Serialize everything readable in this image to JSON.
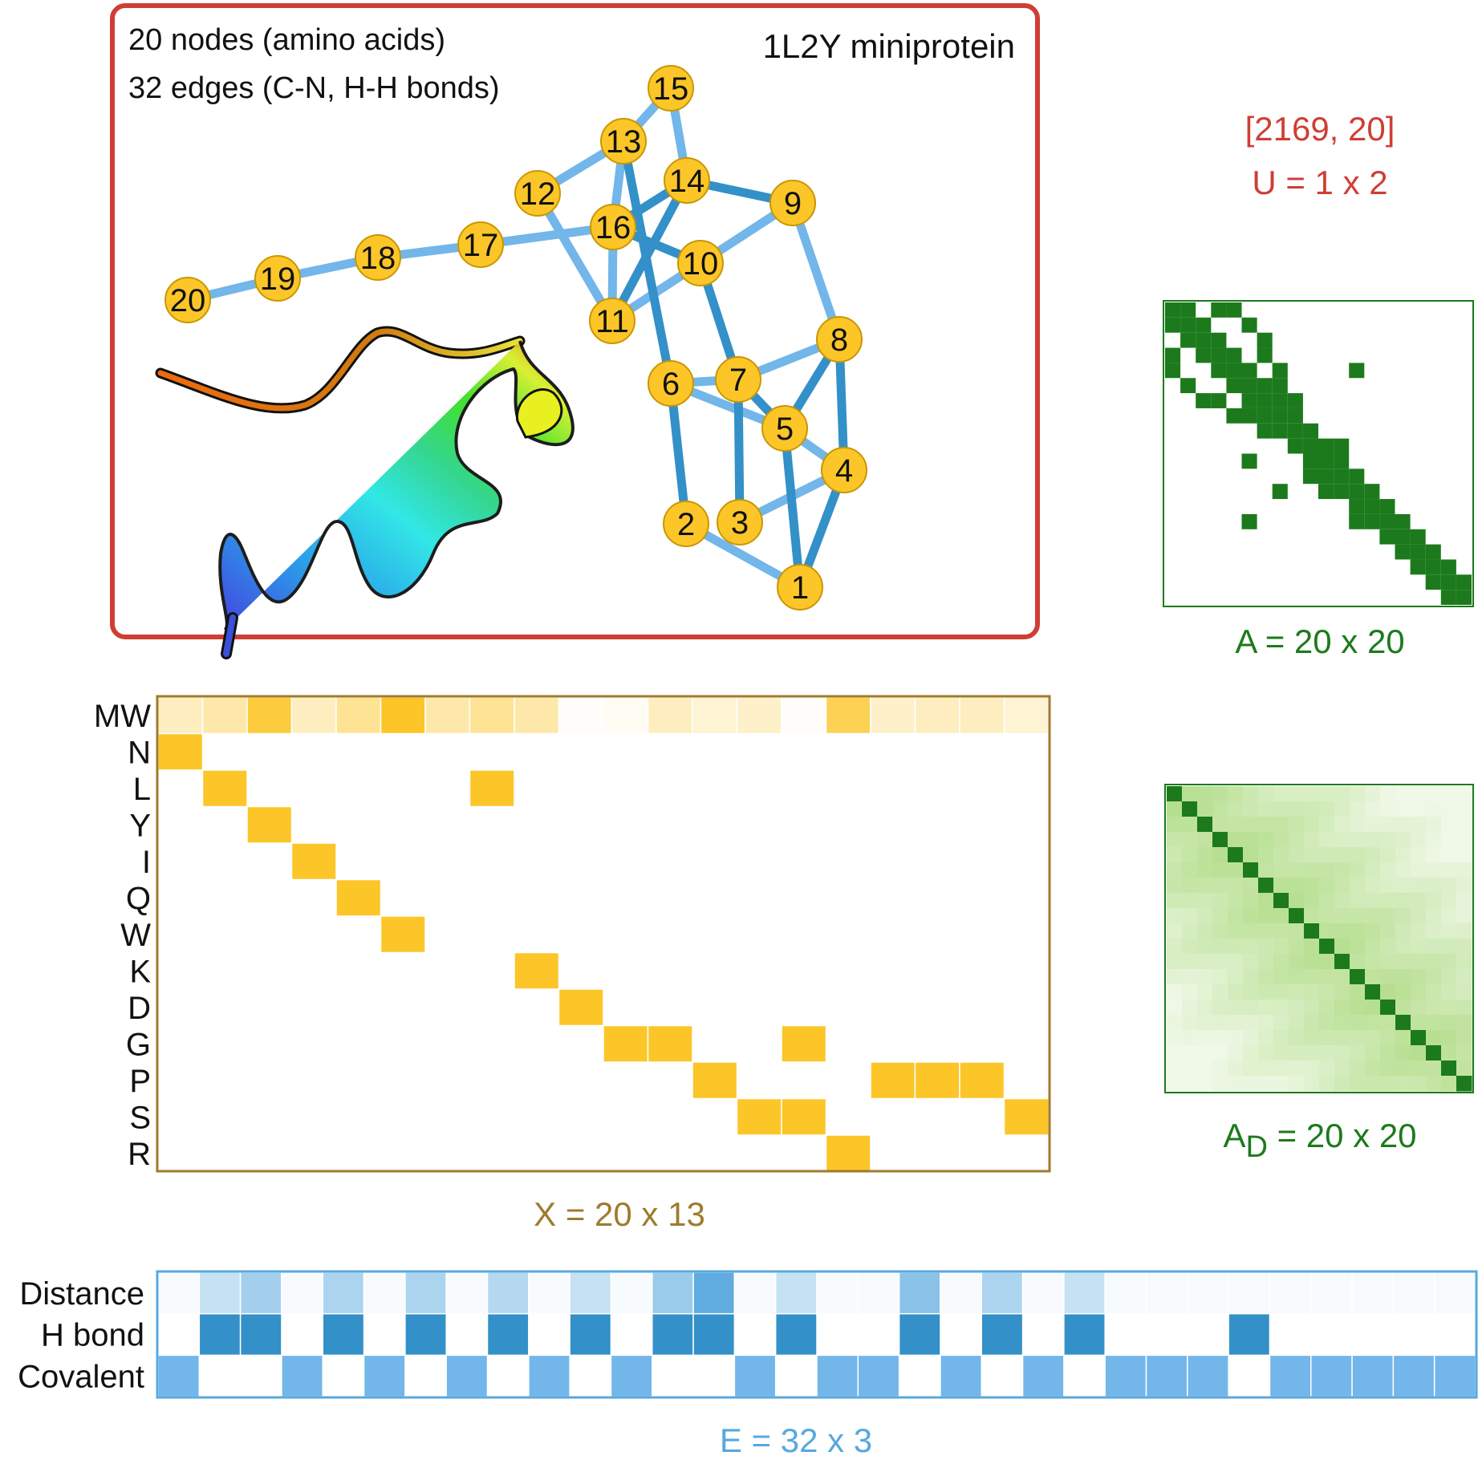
{
  "colors": {
    "panel_border": "#cf3e34",
    "covalent_edge": "#72b6ea",
    "hbond_edge": "#3390c8",
    "node_fill": "#fcc629",
    "node_stroke": "#c99700",
    "feature_accent": "#9e7b2e",
    "adjacency_accent": "#1c7a1c",
    "edge_accent": "#58a8de",
    "u_text": "#cf3e34"
  },
  "graph_panel": {
    "stats_line1": "20 nodes (amino acids)",
    "stats_line2": "32 edges (C-N, H-H bonds)",
    "title": "1L2Y miniprotein",
    "nodes": [
      "1",
      "2",
      "3",
      "4",
      "5",
      "6",
      "7",
      "8",
      "9",
      "10",
      "11",
      "12",
      "13",
      "14",
      "15",
      "16",
      "17",
      "18",
      "19",
      "20"
    ],
    "covalent_edges": [
      [
        20,
        19
      ],
      [
        19,
        18
      ],
      [
        18,
        17
      ],
      [
        17,
        16
      ],
      [
        12,
        13
      ],
      [
        12,
        11
      ],
      [
        13,
        15
      ],
      [
        15,
        14
      ],
      [
        13,
        16
      ],
      [
        16,
        11
      ],
      [
        11,
        10
      ],
      [
        10,
        9
      ],
      [
        9,
        8
      ],
      [
        6,
        7
      ],
      [
        7,
        8
      ],
      [
        6,
        5
      ],
      [
        5,
        4
      ],
      [
        2,
        1
      ],
      [
        3,
        4
      ]
    ],
    "hbond_edges": [
      [
        16,
        14
      ],
      [
        14,
        9
      ],
      [
        14,
        11
      ],
      [
        13,
        6
      ],
      [
        16,
        10
      ],
      [
        10,
        7
      ],
      [
        7,
        3
      ],
      [
        6,
        2
      ],
      [
        7,
        5
      ],
      [
        5,
        1
      ],
      [
        8,
        5
      ],
      [
        8,
        4
      ],
      [
        4,
        1
      ]
    ]
  },
  "U_panel": {
    "shape_values": "[2169, 20]",
    "label": "U = 1 x 2"
  },
  "A_panel": {
    "label": "A = 20 x 20",
    "n": 20,
    "filled": [
      [
        0,
        0
      ],
      [
        0,
        1
      ],
      [
        0,
        3
      ],
      [
        0,
        4
      ],
      [
        1,
        0
      ],
      [
        1,
        1
      ],
      [
        1,
        2
      ],
      [
        1,
        5
      ],
      [
        2,
        1
      ],
      [
        2,
        2
      ],
      [
        2,
        3
      ],
      [
        2,
        6
      ],
      [
        3,
        0
      ],
      [
        3,
        2
      ],
      [
        3,
        3
      ],
      [
        3,
        4
      ],
      [
        3,
        6
      ],
      [
        4,
        0
      ],
      [
        4,
        3
      ],
      [
        4,
        4
      ],
      [
        4,
        5
      ],
      [
        4,
        7
      ],
      [
        4,
        12
      ],
      [
        5,
        1
      ],
      [
        5,
        4
      ],
      [
        5,
        5
      ],
      [
        5,
        6
      ],
      [
        5,
        7
      ],
      [
        6,
        2
      ],
      [
        6,
        3
      ],
      [
        6,
        5
      ],
      [
        6,
        6
      ],
      [
        6,
        7
      ],
      [
        6,
        8
      ],
      [
        7,
        4
      ],
      [
        7,
        5
      ],
      [
        7,
        6
      ],
      [
        7,
        7
      ],
      [
        7,
        8
      ],
      [
        8,
        6
      ],
      [
        8,
        7
      ],
      [
        8,
        8
      ],
      [
        8,
        9
      ],
      [
        9,
        8
      ],
      [
        9,
        9
      ],
      [
        9,
        10
      ],
      [
        9,
        11
      ],
      [
        10,
        5
      ],
      [
        10,
        9
      ],
      [
        10,
        10
      ],
      [
        10,
        11
      ],
      [
        11,
        9
      ],
      [
        11,
        10
      ],
      [
        11,
        11
      ],
      [
        11,
        12
      ],
      [
        12,
        7
      ],
      [
        12,
        10
      ],
      [
        12,
        11
      ],
      [
        12,
        12
      ],
      [
        12,
        13
      ],
      [
        13,
        12
      ],
      [
        13,
        13
      ],
      [
        13,
        14
      ],
      [
        14,
        5
      ],
      [
        14,
        12
      ],
      [
        14,
        13
      ],
      [
        14,
        14
      ],
      [
        14,
        15
      ],
      [
        15,
        14
      ],
      [
        15,
        15
      ],
      [
        15,
        16
      ],
      [
        16,
        15
      ],
      [
        16,
        16
      ],
      [
        16,
        17
      ],
      [
        17,
        16
      ],
      [
        17,
        17
      ],
      [
        17,
        18
      ],
      [
        18,
        17
      ],
      [
        18,
        18
      ],
      [
        18,
        19
      ],
      [
        19,
        18
      ],
      [
        19,
        19
      ]
    ]
  },
  "AD_panel": {
    "label_main": "A",
    "label_sub": "D",
    "label_rest": " = 20 x 20",
    "n": 20
  },
  "X_panel": {
    "label": "X = 20 x 13",
    "rows": [
      "MW",
      "N",
      "L",
      "Y",
      "I",
      "Q",
      "W",
      "K",
      "D",
      "G",
      "P",
      "S",
      "R"
    ],
    "mw_intensity": [
      0.3,
      0.4,
      0.9,
      0.3,
      0.5,
      1.0,
      0.4,
      0.5,
      0.4,
      0.03,
      0.05,
      0.3,
      0.2,
      0.25,
      0.03,
      0.8,
      0.25,
      0.3,
      0.3,
      0.2
    ],
    "onehot": [
      [
        1,
        0
      ],
      [
        2,
        1
      ],
      [
        2,
        7
      ],
      [
        3,
        2
      ],
      [
        4,
        3
      ],
      [
        5,
        4
      ],
      [
        6,
        5
      ],
      [
        7,
        8
      ],
      [
        8,
        9
      ],
      [
        9,
        10
      ],
      [
        9,
        11
      ],
      [
        9,
        14
      ],
      [
        10,
        12
      ],
      [
        10,
        16
      ],
      [
        10,
        17
      ],
      [
        10,
        18
      ],
      [
        11,
        13
      ],
      [
        11,
        14
      ],
      [
        11,
        19
      ],
      [
        12,
        15
      ]
    ]
  },
  "E_panel": {
    "label": "E = 32 x 3",
    "rows": [
      "Distance",
      "H bond",
      "Covalent"
    ],
    "distance": [
      0.05,
      0.35,
      0.55,
      0.05,
      0.5,
      0.05,
      0.5,
      0.05,
      0.45,
      0.05,
      0.35,
      0.05,
      0.6,
      0.95,
      0.05,
      0.35,
      0.05,
      0.05,
      0.7,
      0.05,
      0.5,
      0.05,
      0.35,
      0.05,
      0.05,
      0.05,
      0.05,
      0.05,
      0.05,
      0.05,
      0.05,
      0.05
    ],
    "hbond": [
      0,
      1,
      1,
      0,
      1,
      0,
      1,
      0,
      1,
      0,
      1,
      0,
      1,
      1,
      0,
      1,
      0,
      0,
      1,
      0,
      1,
      0,
      1,
      0,
      0,
      0,
      1,
      0,
      0,
      0,
      0,
      0
    ],
    "covalent": [
      1,
      0,
      0,
      1,
      0,
      1,
      0,
      1,
      0,
      1,
      0,
      1,
      0,
      0,
      1,
      0,
      1,
      1,
      0,
      1,
      0,
      1,
      0,
      1,
      1,
      1,
      0,
      1,
      1,
      1,
      1,
      1
    ]
  }
}
